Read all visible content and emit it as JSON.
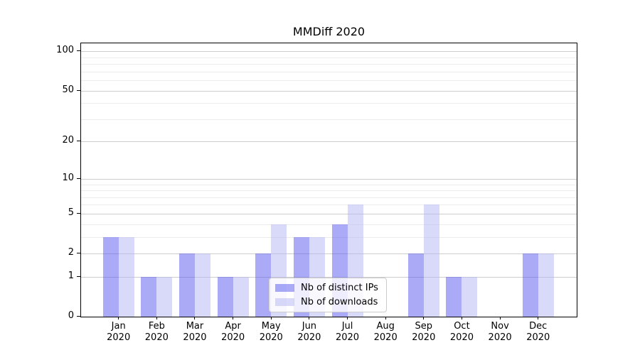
{
  "title": "MMDiff 2020",
  "legend": {
    "items": [
      {
        "label": "Nb of distinct IPs",
        "color": "rgba(85,85,240,0.5)"
      },
      {
        "label": "Nb of downloads",
        "color": "rgba(180,180,243,0.5)"
      }
    ]
  },
  "chart_data": {
    "type": "bar",
    "title": "MMDiff 2020",
    "categories": [
      "Jan 2020",
      "Feb 2020",
      "Mar 2020",
      "Apr 2020",
      "May 2020",
      "Jun 2020",
      "Jul 2020",
      "Aug 2020",
      "Sep 2020",
      "Oct 2020",
      "Nov 2020",
      "Dec 2020"
    ],
    "series": [
      {
        "name": "Nb of distinct IPs",
        "color": "rgba(85,85,240,0.5)",
        "solid_color": "#aaaaf7",
        "values": [
          3,
          1,
          2,
          1,
          2,
          3,
          4,
          0,
          2,
          1,
          0,
          2
        ]
      },
      {
        "name": "Nb of downloads",
        "color": "rgba(180,180,243,0.5)",
        "solid_color": "#d9d9f9",
        "values": [
          3,
          1,
          2,
          1,
          4,
          3,
          6,
          0,
          6,
          1,
          0,
          2
        ]
      }
    ],
    "xlabel": "",
    "ylabel": "",
    "y_scale": "log1p",
    "y_major_ticks": [
      0,
      1,
      2,
      5,
      10,
      20,
      50,
      100
    ],
    "y_minor_gridlines": [
      3,
      4,
      6,
      7,
      8,
      9,
      30,
      40,
      60,
      70,
      80,
      90
    ],
    "ylim": [
      0,
      115
    ],
    "grid": "horizontal-major-and-minor",
    "legend_position": "lower-center-inside",
    "axis_color": "#000000",
    "major_grid_color": "#cdcdcd",
    "minor_grid_color": "#ececec"
  }
}
